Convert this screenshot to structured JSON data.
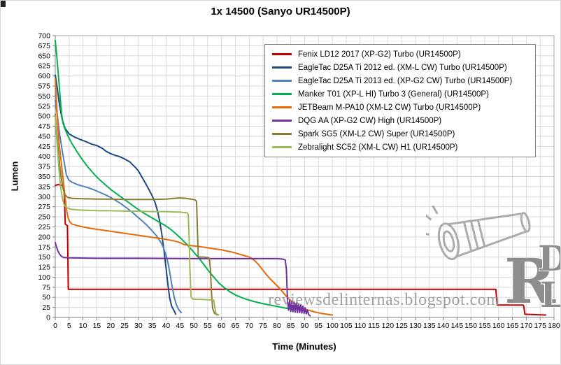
{
  "watermark": {
    "text": "reviewsdelinternas.blogspot.com"
  },
  "logo": {
    "letters": [
      "R",
      "D",
      "L"
    ]
  },
  "chart_data": {
    "type": "line",
    "title": "1x 14500 (Sanyo UR14500P)",
    "xlabel": "Time (Minutes)",
    "ylabel": "Lumen",
    "xlim": [
      0,
      180
    ],
    "ylim": [
      0,
      700
    ],
    "grid": true,
    "legend_position": "upper-right",
    "x_ticks": [
      0,
      5,
      10,
      15,
      20,
      25,
      30,
      35,
      40,
      45,
      50,
      55,
      60,
      65,
      70,
      75,
      80,
      85,
      90,
      95,
      100,
      105,
      110,
      115,
      120,
      125,
      130,
      135,
      140,
      145,
      150,
      155,
      160,
      165,
      170,
      175,
      180
    ],
    "y_ticks": [
      0,
      25,
      50,
      75,
      100,
      125,
      150,
      175,
      200,
      225,
      250,
      275,
      300,
      325,
      350,
      375,
      400,
      425,
      450,
      475,
      500,
      525,
      550,
      575,
      600,
      625,
      650,
      675,
      700
    ],
    "series": [
      {
        "name": "Fenix LD12 2017 (XP-G2) Turbo (UR14500P)",
        "color": "#C00000",
        "points": [
          [
            0,
            328
          ],
          [
            1,
            330
          ],
          [
            3,
            327
          ],
          [
            3.3,
            300
          ],
          [
            3.6,
            232
          ],
          [
            4.4,
            228
          ],
          [
            4.7,
            70
          ],
          [
            60,
            70
          ],
          [
            120,
            70
          ],
          [
            159,
            70
          ],
          [
            159.5,
            31
          ],
          [
            169,
            31
          ],
          [
            169.5,
            8
          ],
          [
            177,
            6
          ]
        ]
      },
      {
        "name": "EagleTac D25A Ti 2012 ed. (XM-L CW) Turbo (UR14500P)",
        "color": "#1F497D",
        "points": [
          [
            0,
            602
          ],
          [
            0.7,
            570
          ],
          [
            1.5,
            530
          ],
          [
            2.5,
            492
          ],
          [
            3.5,
            470
          ],
          [
            5,
            456
          ],
          [
            7,
            448
          ],
          [
            9,
            442
          ],
          [
            11,
            437
          ],
          [
            13,
            431
          ],
          [
            15,
            427
          ],
          [
            17,
            420
          ],
          [
            18.5,
            412
          ],
          [
            20,
            407
          ],
          [
            21.5,
            403
          ],
          [
            23,
            400
          ],
          [
            25,
            394
          ],
          [
            27,
            386
          ],
          [
            29,
            372
          ],
          [
            30,
            364
          ],
          [
            31,
            352
          ],
          [
            32,
            340
          ],
          [
            33,
            328
          ],
          [
            34,
            315
          ],
          [
            35,
            302
          ],
          [
            36,
            286
          ],
          [
            37,
            262
          ],
          [
            37.8,
            235
          ],
          [
            38.5,
            205
          ],
          [
            39.2,
            168
          ],
          [
            40,
            122
          ],
          [
            40.7,
            80
          ],
          [
            41.3,
            48
          ],
          [
            42,
            28
          ],
          [
            42.8,
            18
          ],
          [
            43.5,
            8
          ]
        ]
      },
      {
        "name": "EagleTac D25A Ti 2013 ed. (XP-G2 CW) Turbo (UR14500P)",
        "color": "#4F81BD",
        "points": [
          [
            0,
            540
          ],
          [
            0.8,
            498
          ],
          [
            1.6,
            455
          ],
          [
            2.5,
            415
          ],
          [
            3.3,
            382
          ],
          [
            4,
            355
          ],
          [
            4.8,
            342
          ],
          [
            6,
            336
          ],
          [
            8,
            330
          ],
          [
            10,
            326
          ],
          [
            12,
            322
          ],
          [
            14,
            317
          ],
          [
            16,
            311
          ],
          [
            18,
            305
          ],
          [
            20,
            298
          ],
          [
            22,
            290
          ],
          [
            24,
            281
          ],
          [
            26,
            271
          ],
          [
            28,
            260
          ],
          [
            30,
            248
          ],
          [
            32,
            236
          ],
          [
            33.5,
            226
          ],
          [
            35,
            215
          ],
          [
            36.5,
            203
          ],
          [
            38,
            188
          ],
          [
            39,
            174
          ],
          [
            40,
            155
          ],
          [
            40.8,
            132
          ],
          [
            41.5,
            105
          ],
          [
            42.2,
            75
          ],
          [
            43,
            48
          ],
          [
            43.8,
            30
          ],
          [
            44.5,
            20
          ],
          [
            45.5,
            12
          ]
        ]
      },
      {
        "name": "Manker T01 (XP-L HI) Turbo 3 (General) (UR14500P)",
        "color": "#00B050",
        "points": [
          [
            0,
            688
          ],
          [
            0.6,
            645
          ],
          [
            1.2,
            595
          ],
          [
            1.8,
            545
          ],
          [
            2.3,
            505
          ],
          [
            2.8,
            482
          ],
          [
            3.5,
            468
          ],
          [
            4.5,
            452
          ],
          [
            6,
            432
          ],
          [
            8,
            410
          ],
          [
            10,
            390
          ],
          [
            12,
            372
          ],
          [
            14,
            356
          ],
          [
            16,
            342
          ],
          [
            18,
            330
          ],
          [
            20,
            318
          ],
          [
            22,
            308
          ],
          [
            24,
            298
          ],
          [
            26,
            288
          ],
          [
            28,
            278
          ],
          [
            30,
            268
          ],
          [
            32,
            259
          ],
          [
            34,
            251
          ],
          [
            36,
            243
          ],
          [
            38,
            235
          ],
          [
            40,
            227
          ],
          [
            42,
            217
          ],
          [
            44,
            205
          ],
          [
            46,
            192
          ],
          [
            48,
            178
          ],
          [
            50,
            162
          ],
          [
            52,
            146
          ],
          [
            54,
            128
          ],
          [
            56,
            110
          ],
          [
            57.5,
            98
          ],
          [
            59,
            86
          ],
          [
            61,
            74
          ],
          [
            63,
            64
          ],
          [
            65,
            56
          ],
          [
            67,
            50
          ],
          [
            69,
            45
          ],
          [
            72,
            39
          ],
          [
            75,
            34
          ],
          [
            78,
            30
          ],
          [
            81,
            26
          ],
          [
            84,
            22
          ],
          [
            86,
            18
          ]
        ]
      },
      {
        "name": "JETBeam M-PA10 (XM-L2 CW) Turbo (UR14500P)",
        "color": "#E36C0A",
        "points": [
          [
            0,
            592
          ],
          [
            0.4,
            540
          ],
          [
            0.9,
            480
          ],
          [
            1.4,
            432
          ],
          [
            2,
            395
          ],
          [
            2.7,
            352
          ],
          [
            3.4,
            308
          ],
          [
            4,
            272
          ],
          [
            4.6,
            248
          ],
          [
            5.2,
            238
          ],
          [
            6,
            232
          ],
          [
            8,
            228
          ],
          [
            10,
            225
          ],
          [
            13,
            221
          ],
          [
            16,
            218
          ],
          [
            20,
            214
          ],
          [
            24,
            210
          ],
          [
            28,
            206
          ],
          [
            32,
            202
          ],
          [
            36,
            198
          ],
          [
            40,
            194
          ],
          [
            43,
            190
          ],
          [
            45,
            186
          ],
          [
            46.5,
            181
          ],
          [
            48,
            179
          ],
          [
            51,
            177
          ],
          [
            54,
            174
          ],
          [
            57,
            171
          ],
          [
            60,
            168
          ],
          [
            62,
            165
          ],
          [
            64,
            162
          ],
          [
            66,
            158
          ],
          [
            68,
            154
          ],
          [
            70,
            150
          ],
          [
            71,
            146
          ],
          [
            72,
            141
          ],
          [
            73,
            134
          ],
          [
            74,
            126
          ],
          [
            75,
            117
          ],
          [
            76,
            108
          ],
          [
            77,
            100
          ],
          [
            78,
            93
          ],
          [
            79,
            86
          ],
          [
            80,
            79
          ],
          [
            81,
            72
          ],
          [
            82,
            64
          ],
          [
            83,
            56
          ],
          [
            84,
            48
          ],
          [
            85,
            42
          ],
          [
            86,
            36
          ],
          [
            87,
            31
          ],
          [
            88,
            27
          ],
          [
            89,
            24
          ],
          [
            90,
            21
          ],
          [
            92,
            17
          ],
          [
            94,
            13
          ],
          [
            96,
            10
          ],
          [
            98,
            8
          ],
          [
            100,
            6
          ]
        ]
      },
      {
        "name": "DQG AA (XP-G2 CW) High (UR14500P)",
        "color": "#7030A0",
        "points": [
          [
            0,
            186
          ],
          [
            0.4,
            176
          ],
          [
            0.9,
            166
          ],
          [
            1.5,
            158
          ],
          [
            2.2,
            152
          ],
          [
            3,
            149
          ],
          [
            5,
            148
          ],
          [
            15,
            147
          ],
          [
            30,
            147
          ],
          [
            50,
            146
          ],
          [
            70,
            146
          ],
          [
            80,
            146
          ],
          [
            82,
            145
          ],
          [
            83,
            143
          ],
          [
            83.4,
            120
          ],
          [
            83.8,
            45
          ],
          [
            84.2,
            18
          ],
          [
            84.6,
            42
          ],
          [
            85,
            15
          ],
          [
            85.4,
            40
          ],
          [
            85.8,
            14
          ],
          [
            86.2,
            38
          ],
          [
            86.6,
            13
          ],
          [
            87,
            36
          ],
          [
            87.4,
            12
          ],
          [
            87.8,
            34
          ],
          [
            88.2,
            12
          ],
          [
            88.6,
            32
          ],
          [
            89,
            11
          ],
          [
            89.4,
            28
          ],
          [
            89.8,
            10
          ],
          [
            90.2,
            24
          ],
          [
            90.6,
            9
          ],
          [
            91,
            18
          ],
          [
            91.5,
            7
          ],
          [
            92,
            4
          ]
        ]
      },
      {
        "name": "Spark SG5 (XM-L2 CW) Super (UR14500P)",
        "color": "#8C7B32",
        "points": [
          [
            0,
            505
          ],
          [
            0.5,
            462
          ],
          [
            1,
            420
          ],
          [
            1.6,
            380
          ],
          [
            2.2,
            345
          ],
          [
            2.8,
            320
          ],
          [
            3.5,
            305
          ],
          [
            4.5,
            298
          ],
          [
            6,
            296
          ],
          [
            10,
            295
          ],
          [
            15,
            294
          ],
          [
            20,
            294
          ],
          [
            25,
            293
          ],
          [
            30,
            293
          ],
          [
            35,
            293
          ],
          [
            40,
            294
          ],
          [
            43,
            296
          ],
          [
            45,
            297
          ],
          [
            47,
            296
          ],
          [
            49,
            294
          ],
          [
            50.5,
            292
          ],
          [
            51,
            288
          ],
          [
            51.3,
            220
          ],
          [
            51.6,
            152
          ],
          [
            52,
            150
          ],
          [
            53.5,
            150
          ],
          [
            55,
            149
          ],
          [
            55.6,
            147
          ],
          [
            56,
            120
          ],
          [
            56.4,
            60
          ],
          [
            56.8,
            22
          ],
          [
            57.5,
            10
          ],
          [
            58.5,
            6
          ]
        ]
      },
      {
        "name": "Zebralight SC52 (XM-L CW) H1 (UR14500P)",
        "color": "#9BBB59",
        "points": [
          [
            0,
            500
          ],
          [
            0.5,
            448
          ],
          [
            1,
            398
          ],
          [
            1.5,
            355
          ],
          [
            2,
            322
          ],
          [
            2.6,
            295
          ],
          [
            3.2,
            280
          ],
          [
            4,
            273
          ],
          [
            5.5,
            269
          ],
          [
            8,
            267
          ],
          [
            12,
            266
          ],
          [
            16,
            265
          ],
          [
            20,
            265
          ],
          [
            25,
            264
          ],
          [
            30,
            264
          ],
          [
            35,
            263
          ],
          [
            40,
            263
          ],
          [
            44,
            262
          ],
          [
            46,
            261
          ],
          [
            47.5,
            260
          ],
          [
            48,
            256
          ],
          [
            48.3,
            200
          ],
          [
            48.6,
            120
          ],
          [
            49,
            52
          ],
          [
            49.5,
            46
          ],
          [
            51,
            45
          ],
          [
            53,
            45
          ],
          [
            55,
            44
          ],
          [
            56.5,
            44
          ],
          [
            57.2,
            43
          ],
          [
            57.6,
            24
          ],
          [
            58,
            10
          ],
          [
            59,
            6
          ]
        ]
      }
    ]
  }
}
